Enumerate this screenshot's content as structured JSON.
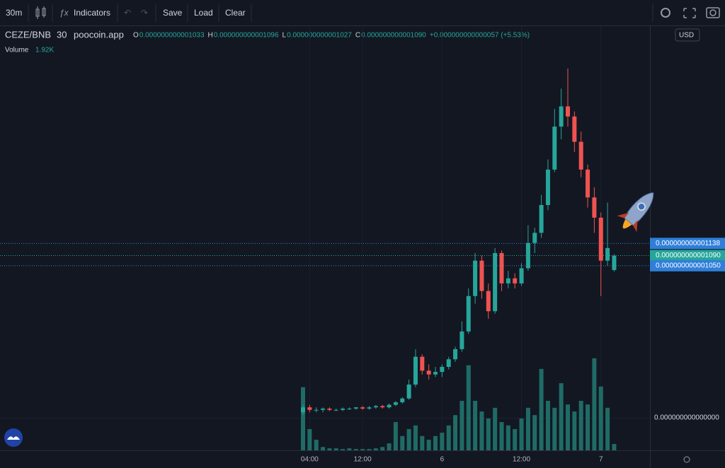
{
  "toolbar": {
    "interval": "30m",
    "indicators": "Indicators",
    "save": "Save",
    "load": "Load",
    "clear": "Clear"
  },
  "chart_data": {
    "type": "candlestick",
    "symbol": "CEZE/BNB",
    "interval": "30",
    "source": "poocoin.app",
    "legend": [
      {
        "key": "O",
        "text": "0.000000000001033"
      },
      {
        "key": "H",
        "text": "0.000000000001096"
      },
      {
        "key": "L",
        "text": "0.000000000001027"
      },
      {
        "key": "C",
        "text": "0.000000000001090"
      }
    ],
    "change": "+0.000000000000057 (+5.53%)",
    "currency": "USD",
    "volume_label": "Volume",
    "volume_value": "1.92K",
    "volume_scale_label": "0.000000000000000",
    "up_color": "#26a69a",
    "down_color": "#ef5350",
    "volume_color": "#1f6b66",
    "categories": [
      null,
      "04:00",
      null,
      null,
      null,
      null,
      null,
      null,
      null,
      "12:00",
      null,
      null,
      null,
      null,
      null,
      null,
      null,
      null,
      null,
      null,
      null,
      "6",
      null,
      null,
      null,
      null,
      null,
      null,
      null,
      null,
      null,
      null,
      null,
      "12:00",
      null,
      null,
      null,
      null,
      null,
      null,
      null,
      null,
      null,
      null,
      null,
      "7",
      null,
      null
    ],
    "open": [
      4.7e-13,
      4.9e-13,
      4.8e-13,
      4.8e-13,
      4.85e-13,
      4.8e-13,
      4.8e-13,
      4.85e-13,
      4.85e-13,
      4.9e-13,
      4.85e-13,
      4.9e-13,
      4.95e-13,
      4.9e-13,
      5e-13,
      5.1e-13,
      5.25e-13,
      5.8e-13,
      6.9e-13,
      6.35e-13,
      6.2e-13,
      6.3e-13,
      6.5e-13,
      6.8e-13,
      7.2e-13,
      7.9e-13,
      9.3e-13,
      1.07e-12,
      9.5e-13,
      8.7e-13,
      1.1e-12,
      9.8e-13,
      1e-12,
      9.8e-13,
      1.04e-12,
      1.14e-12,
      1.18e-12,
      1.29e-12,
      1.43e-12,
      1.6e-12,
      1.68e-12,
      1.64e-12,
      1.54e-12,
      1.43e-12,
      1.32e-12,
      1.24e-12,
      1.07e-12,
      1.033e-12
    ],
    "high": [
      5e-13,
      5e-13,
      4.9e-13,
      4.9e-13,
      4.9e-13,
      4.85e-13,
      4.9e-13,
      4.9e-13,
      4.9e-13,
      4.95e-13,
      4.95e-13,
      5e-13,
      5e-13,
      5.05e-13,
      5.15e-13,
      5.3e-13,
      6e-13,
      7.2e-13,
      7e-13,
      6.6e-13,
      6.5e-13,
      6.6e-13,
      6.9e-13,
      7.3e-13,
      8.3e-13,
      9.6e-13,
      1.1e-12,
      1.09e-12,
      9.8e-13,
      1.12e-12,
      1.11e-12,
      1.03e-12,
      1.02e-12,
      1.06e-12,
      1.21e-12,
      1.2e-12,
      1.33e-12,
      1.47e-12,
      1.67e-12,
      1.75e-12,
      1.83e-12,
      1.66e-12,
      1.58e-12,
      1.45e-12,
      1.36e-12,
      1.26e-12,
      1.3e-12,
      1.096e-12
    ],
    "low": [
      4.6e-13,
      4.7e-13,
      4.7e-13,
      4.7e-13,
      4.75e-13,
      4.75e-13,
      4.75e-13,
      4.8e-13,
      4.8e-13,
      4.8e-13,
      4.8e-13,
      4.85e-13,
      4.85e-13,
      4.85e-13,
      4.95e-13,
      5.05e-13,
      5.2e-13,
      5.7e-13,
      6.2e-13,
      6e-13,
      6.1e-13,
      6.1e-13,
      6.4e-13,
      6.7e-13,
      7.1e-13,
      7.8e-13,
      9e-13,
      9.2e-13,
      8.4e-13,
      8.6e-13,
      9.5e-13,
      9.6e-13,
      9.6e-13,
      9.7e-13,
      1.03e-12,
      1.1e-12,
      1.16e-12,
      1.27e-12,
      1.42e-12,
      1.55e-12,
      1.6e-12,
      1.5e-12,
      1.4e-12,
      1.28e-12,
      1.18e-12,
      9.3e-13,
      1.05e-12,
      1.027e-12
    ],
    "close": [
      4.9e-13,
      4.8e-13,
      4.8e-13,
      4.85e-13,
      4.8e-13,
      4.8e-13,
      4.85e-13,
      4.85e-13,
      4.9e-13,
      4.85e-13,
      4.9e-13,
      4.95e-13,
      4.9e-13,
      5e-13,
      5.1e-13,
      5.25e-13,
      5.8e-13,
      6.9e-13,
      6.35e-13,
      6.2e-13,
      6.3e-13,
      6.5e-13,
      6.8e-13,
      7.2e-13,
      7.9e-13,
      9.3e-13,
      1.07e-12,
      9.5e-13,
      8.7e-13,
      1.1e-12,
      9.8e-13,
      1e-12,
      9.8e-13,
      1.04e-12,
      1.14e-12,
      1.18e-12,
      1.29e-12,
      1.43e-12,
      1.6e-12,
      1.68e-12,
      1.64e-12,
      1.54e-12,
      1.43e-12,
      1.32e-12,
      1.24e-12,
      1.07e-12,
      1.12e-12,
      1.09e-12
    ],
    "volume": [
      19000,
      6400,
      3200,
      1000,
      600,
      600,
      400,
      600,
      400,
      400,
      400,
      600,
      1000,
      2100,
      8500,
      4300,
      6400,
      7500,
      4300,
      3200,
      4300,
      5300,
      7500,
      10600,
      14900,
      25600,
      14900,
      11700,
      9600,
      12800,
      8500,
      7500,
      6400,
      9600,
      12800,
      10600,
      24500,
      14900,
      12800,
      20200,
      13800,
      11700,
      14900,
      13800,
      27700,
      19200,
      12800,
      1920
    ],
    "ylim": [
      3.2e-13,
      2e-12
    ],
    "volume_ylim": [
      0,
      40000
    ],
    "price_lines": [
      {
        "value": 1.138e-12,
        "label": "0.000000000001138",
        "color": "#2f7fd8"
      },
      {
        "value": 1.09e-12,
        "label": "0.000000000001090",
        "color": "#26a69a"
      },
      {
        "value": 1.05e-12,
        "label": "0.000000000001050",
        "color": "#2f7fd8"
      }
    ]
  }
}
